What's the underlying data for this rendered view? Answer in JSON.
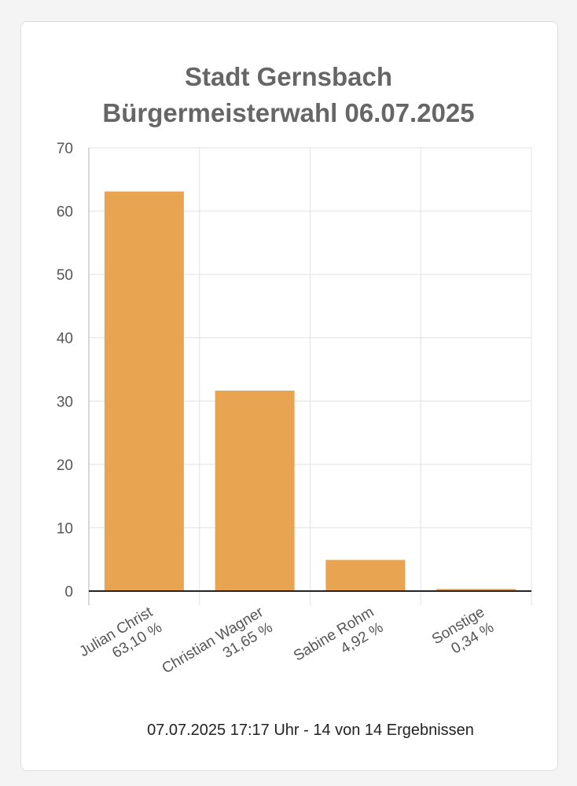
{
  "chart_data": {
    "type": "bar",
    "title": "Stadt Gernsbach",
    "subtitle": "Bürgermeisterwahl 06.07.2025",
    "categories": [
      "Julian Christ",
      "Christian Wagner",
      "Sabine Rohm",
      "Sonstige"
    ],
    "value_labels": [
      "63,10 %",
      "31,65 %",
      "4,92 %",
      "0,34 %"
    ],
    "values": [
      63.1,
      31.65,
      4.92,
      0.34
    ],
    "ylim": [
      0,
      70
    ],
    "yticks": [
      0,
      10,
      20,
      30,
      40,
      50,
      60,
      70
    ],
    "xlabel": "",
    "ylabel": "",
    "grid": true,
    "bar_color": "#e8a450"
  },
  "footer": {
    "status": "07.07.2025 17:17 Uhr - 14 von 14 Ergebnissen"
  }
}
